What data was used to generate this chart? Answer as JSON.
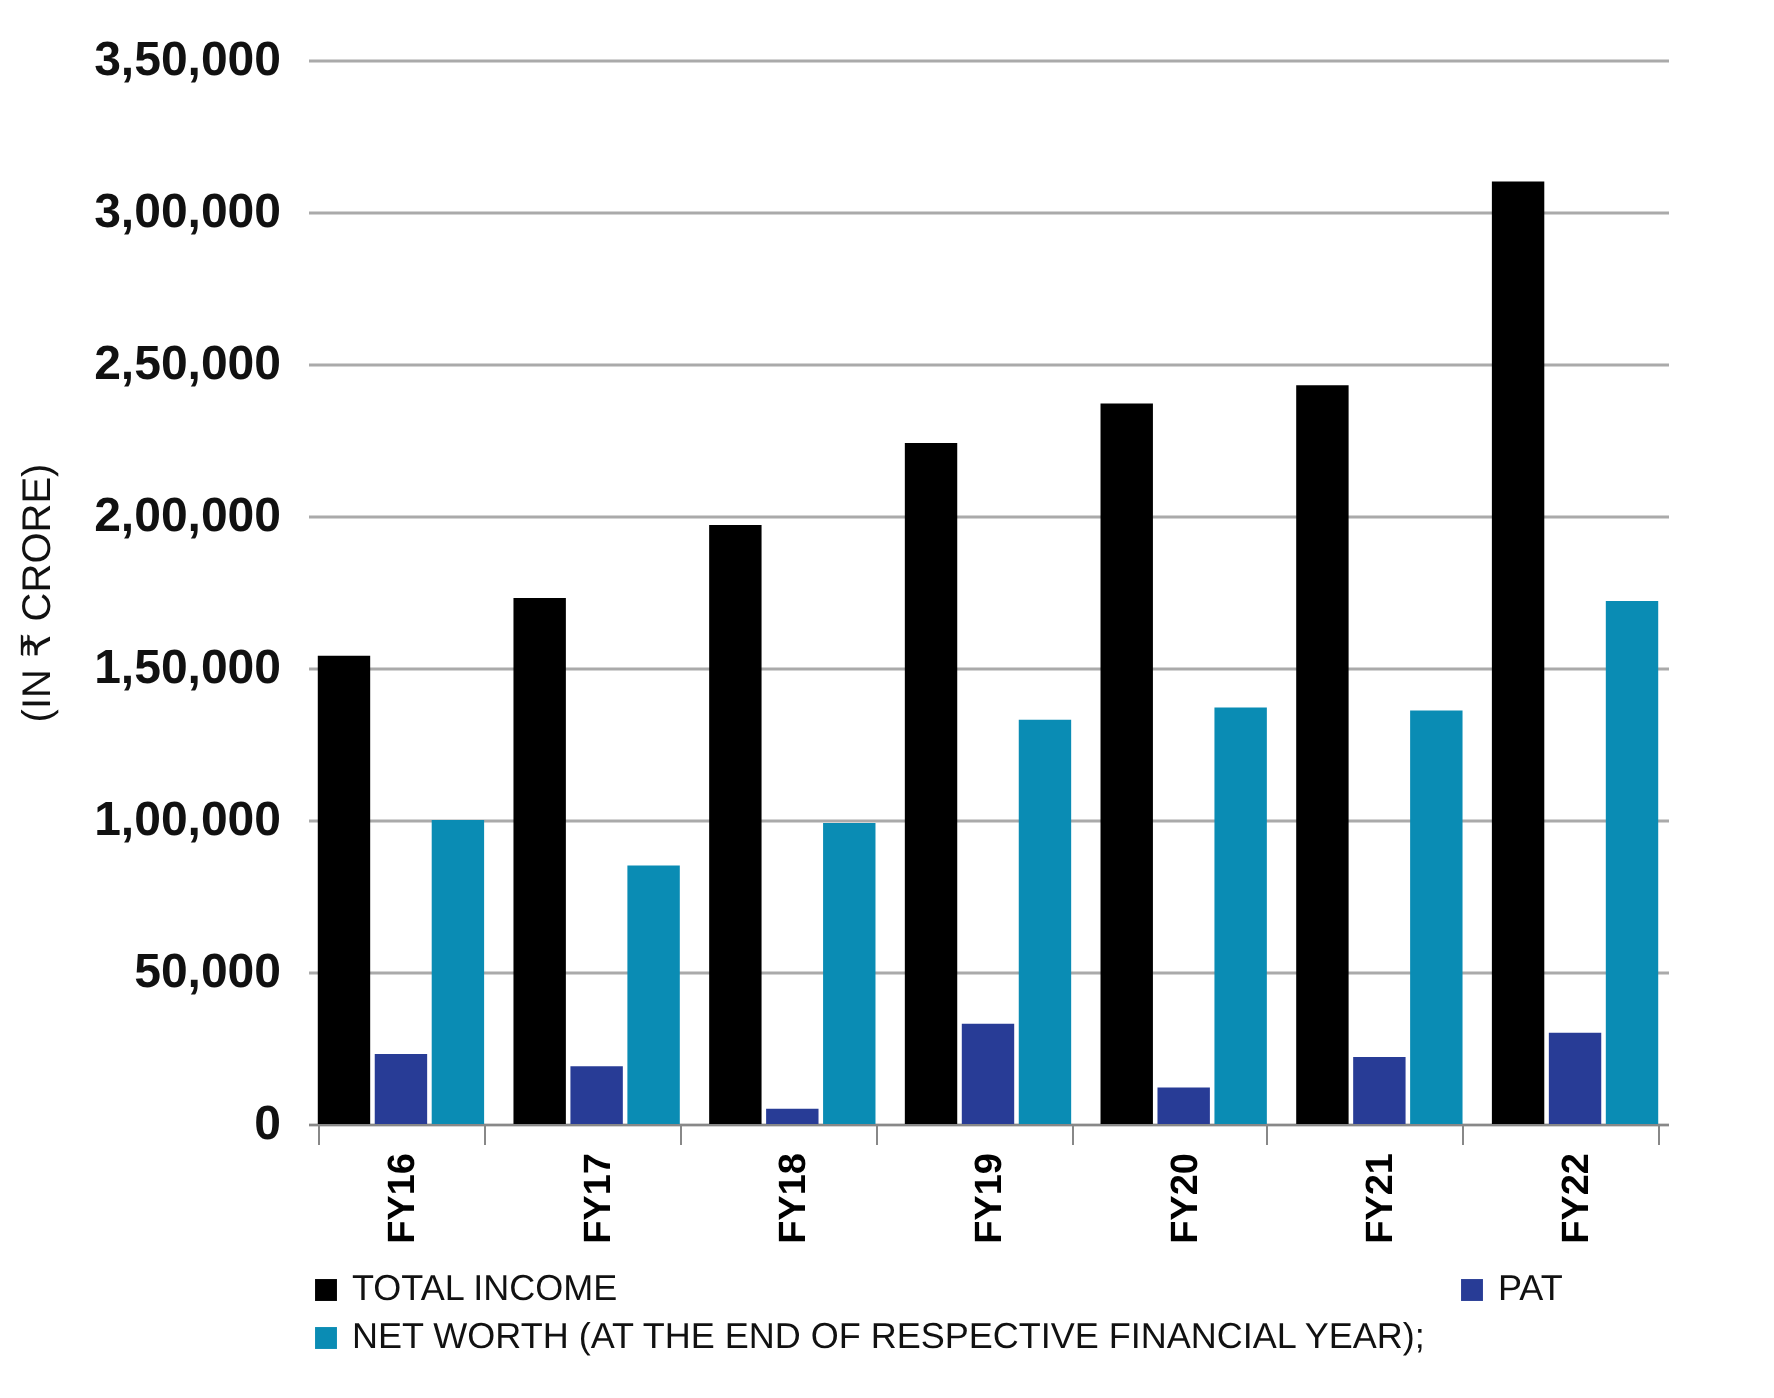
{
  "chart_data": {
    "type": "bar",
    "ylabel": "(IN ₹ CRORE)",
    "categories": [
      "FY16",
      "FY17",
      "FY18",
      "FY19",
      "FY20",
      "FY21",
      "FY22"
    ],
    "series": [
      {
        "name": "TOTAL INCOME",
        "color": "#000000",
        "values": [
          154000,
          173000,
          197000,
          224000,
          237000,
          243000,
          310000
        ]
      },
      {
        "name": "PAT",
        "color": "#283c96",
        "values": [
          23000,
          19000,
          5000,
          33000,
          12000,
          22000,
          30000
        ]
      },
      {
        "name": "NET WORTH (AT THE END OF RESPECTIVE FINANCIAL YEAR);",
        "color": "#0a8cb4",
        "values": [
          100000,
          85000,
          99000,
          133000,
          137000,
          136000,
          172000
        ]
      }
    ],
    "ylim": [
      0,
      350000
    ],
    "yticks": [
      {
        "value": 0,
        "label": "0"
      },
      {
        "value": 50000,
        "label": "50,000"
      },
      {
        "value": 100000,
        "label": "1,00,000"
      },
      {
        "value": 150000,
        "label": "1,50,000"
      },
      {
        "value": 200000,
        "label": "2,00,000"
      },
      {
        "value": 250000,
        "label": "2,50,000"
      },
      {
        "value": 300000,
        "label": "3,00,000"
      },
      {
        "value": 350000,
        "label": "3,50,000"
      }
    ],
    "grid": "y",
    "legend": "bottom"
  }
}
